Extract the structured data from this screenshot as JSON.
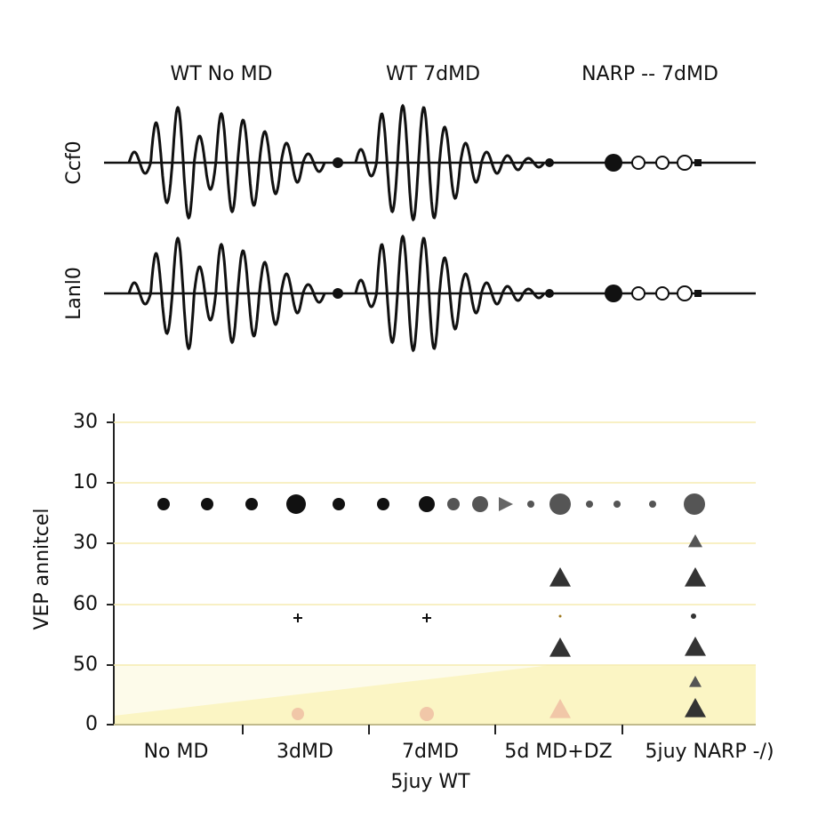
{
  "top_panel": {
    "column_titles": [
      "WT No MD",
      "WT 7dMD",
      "NARP -- 7dMD"
    ],
    "row_labels": [
      "Ccf0",
      "Lanl0"
    ]
  },
  "bottom_panel": {
    "y_axis_label": "VEP annitcel",
    "y_tick_labels": [
      "30",
      "10",
      "30",
      "60",
      "50",
      "0"
    ],
    "x_tick_labels": [
      "No MD",
      "3dMD",
      "7dMD",
      "5d MD+DZ",
      "5juy NARP -/)"
    ],
    "x_sublabel": "5juy WT"
  }
}
